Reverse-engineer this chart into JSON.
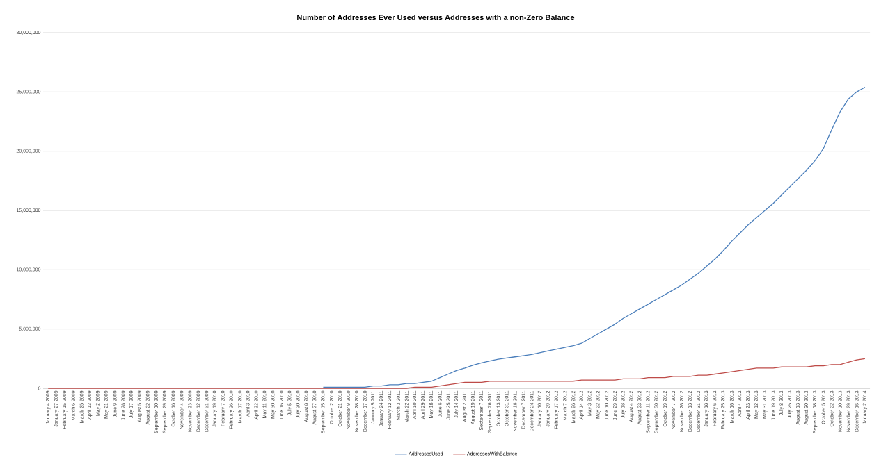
{
  "chart_data": {
    "type": "line",
    "title": "Number of Addresses Ever Used versus Addresses with a non-Zero Balance",
    "categories": [
      "January 4 2009",
      "January 27 2009",
      "February 15 2009",
      "March 6 2009",
      "March 25 2009",
      "April 13 2009",
      "May 2 2009",
      "May 21 2009",
      "June 9 2009",
      "June 28 2009",
      "July 17 2009",
      "August 5 2009",
      "August 22 2009",
      "September 10 2009",
      "September 29 2009",
      "October 16 2009",
      "November 4 2009",
      "November 23 2009",
      "December 12 2009",
      "December 31 2009",
      "January 19 2010",
      "February 7 2010",
      "February 26 2010",
      "March 17 2010",
      "April 3 2010",
      "April 22 2010",
      "May 11 2010",
      "May 30 2010",
      "June 16 2010",
      "July 5 2010",
      "July 20 2010",
      "August 8 2010",
      "August 27 2010",
      "September 15 2010",
      "October 2 2010",
      "October 21 2010",
      "November 9 2010",
      "November 28 2010",
      "December 17 2010",
      "January 5 2011",
      "January 24 2011",
      "February 12 2011",
      "March 3 2011",
      "March 22 2011",
      "April 10 2011",
      "April 29 2011",
      "May 18 2011",
      "June 6 2011",
      "June 25 2011",
      "July 14 2011",
      "August 2 2011",
      "August 19 2011",
      "September 7 2011",
      "September 26 2011",
      "October 13 2011",
      "October 31 2011",
      "November 18 2011",
      "December 7 2011",
      "December 24 2011",
      "January 10 2012",
      "January 29 2012",
      "February 17 2012",
      "March 7 2012",
      "March 26 2012",
      "April 14 2012",
      "May 3 2012",
      "May 22 2012",
      "June 10 2012",
      "June 29 2012",
      "July 18 2012",
      "August 4 2012",
      "August 23 2012",
      "September 11 2012",
      "September 30 2012",
      "October 19 2012",
      "November 7 2012",
      "November 26 2012",
      "December 13 2012",
      "December 31 2012",
      "January 18 2013",
      "February 6 2013",
      "February 25 2013",
      "March 16 2013",
      "April 4 2013",
      "April 23 2013",
      "May 12 2013",
      "May 31 2013",
      "June 19 2013",
      "July 8 2013",
      "July 25 2013",
      "August 13 2013",
      "August 30 2013",
      "September 18 2013",
      "October 5 2013",
      "October 22 2013",
      "November 10 2013",
      "November 29 2013",
      "December 16 2013",
      "January 2 2014"
    ],
    "series": [
      {
        "name": "AddressesUsed",
        "color": "#4a7ebb",
        "values": [
          null,
          null,
          null,
          null,
          null,
          null,
          null,
          null,
          null,
          null,
          null,
          null,
          null,
          null,
          null,
          null,
          null,
          null,
          null,
          null,
          null,
          null,
          null,
          null,
          null,
          null,
          null,
          null,
          null,
          null,
          null,
          null,
          null,
          100000,
          100000,
          100000,
          100000,
          100000,
          100000,
          200000,
          200000,
          300000,
          300000,
          400000,
          400000,
          500000,
          600000,
          900000,
          1200000,
          1500000,
          1700000,
          1950000,
          2150000,
          2300000,
          2450000,
          2550000,
          2650000,
          2750000,
          2850000,
          3000000,
          3150000,
          3300000,
          3450000,
          3600000,
          3800000,
          4200000,
          4600000,
          5000000,
          5400000,
          5900000,
          6300000,
          6700000,
          7100000,
          7500000,
          7900000,
          8300000,
          8700000,
          9200000,
          9700000,
          10300000,
          10900000,
          11600000,
          12400000,
          13100000,
          13800000,
          14400000,
          15000000,
          15600000,
          16300000,
          17000000,
          17700000,
          18400000,
          19200000,
          20200000,
          21800000,
          23300000,
          24400000,
          25000000,
          25400000
        ]
      },
      {
        "name": "AddressesWithBalance",
        "color": "#be4b48",
        "values": [
          0,
          0,
          0,
          0,
          0,
          0,
          0,
          0,
          0,
          0,
          0,
          0,
          0,
          0,
          0,
          0,
          0,
          0,
          0,
          0,
          0,
          0,
          0,
          0,
          0,
          0,
          0,
          0,
          0,
          0,
          0,
          0,
          0,
          0,
          0,
          0,
          0,
          0,
          0,
          0,
          0,
          0,
          0,
          0,
          100000,
          100000,
          100000,
          200000,
          300000,
          400000,
          500000,
          500000,
          500000,
          600000,
          600000,
          600000,
          600000,
          600000,
          600000,
          600000,
          600000,
          600000,
          600000,
          600000,
          700000,
          700000,
          700000,
          700000,
          700000,
          800000,
          800000,
          800000,
          900000,
          900000,
          900000,
          1000000,
          1000000,
          1000000,
          1100000,
          1100000,
          1200000,
          1300000,
          1400000,
          1500000,
          1600000,
          1700000,
          1700000,
          1700000,
          1800000,
          1800000,
          1800000,
          1800000,
          1900000,
          1900000,
          2000000,
          2000000,
          2200000,
          2400000,
          2500000
        ]
      }
    ],
    "ylim": [
      0,
      30000000
    ],
    "yticks": [
      {
        "value": 0,
        "label": "0"
      },
      {
        "value": 5000000,
        "label": "5,000,000"
      },
      {
        "value": 10000000,
        "label": "10,000,000"
      },
      {
        "value": 15000000,
        "label": "15,000,000"
      },
      {
        "value": 20000000,
        "label": "20,000,000"
      },
      {
        "value": 25000000,
        "label": "25,000,000"
      },
      {
        "value": 30000000,
        "label": "30,000,000"
      }
    ],
    "grid": "y",
    "legend": "bottom",
    "marker": "none",
    "line_style": "solid"
  }
}
